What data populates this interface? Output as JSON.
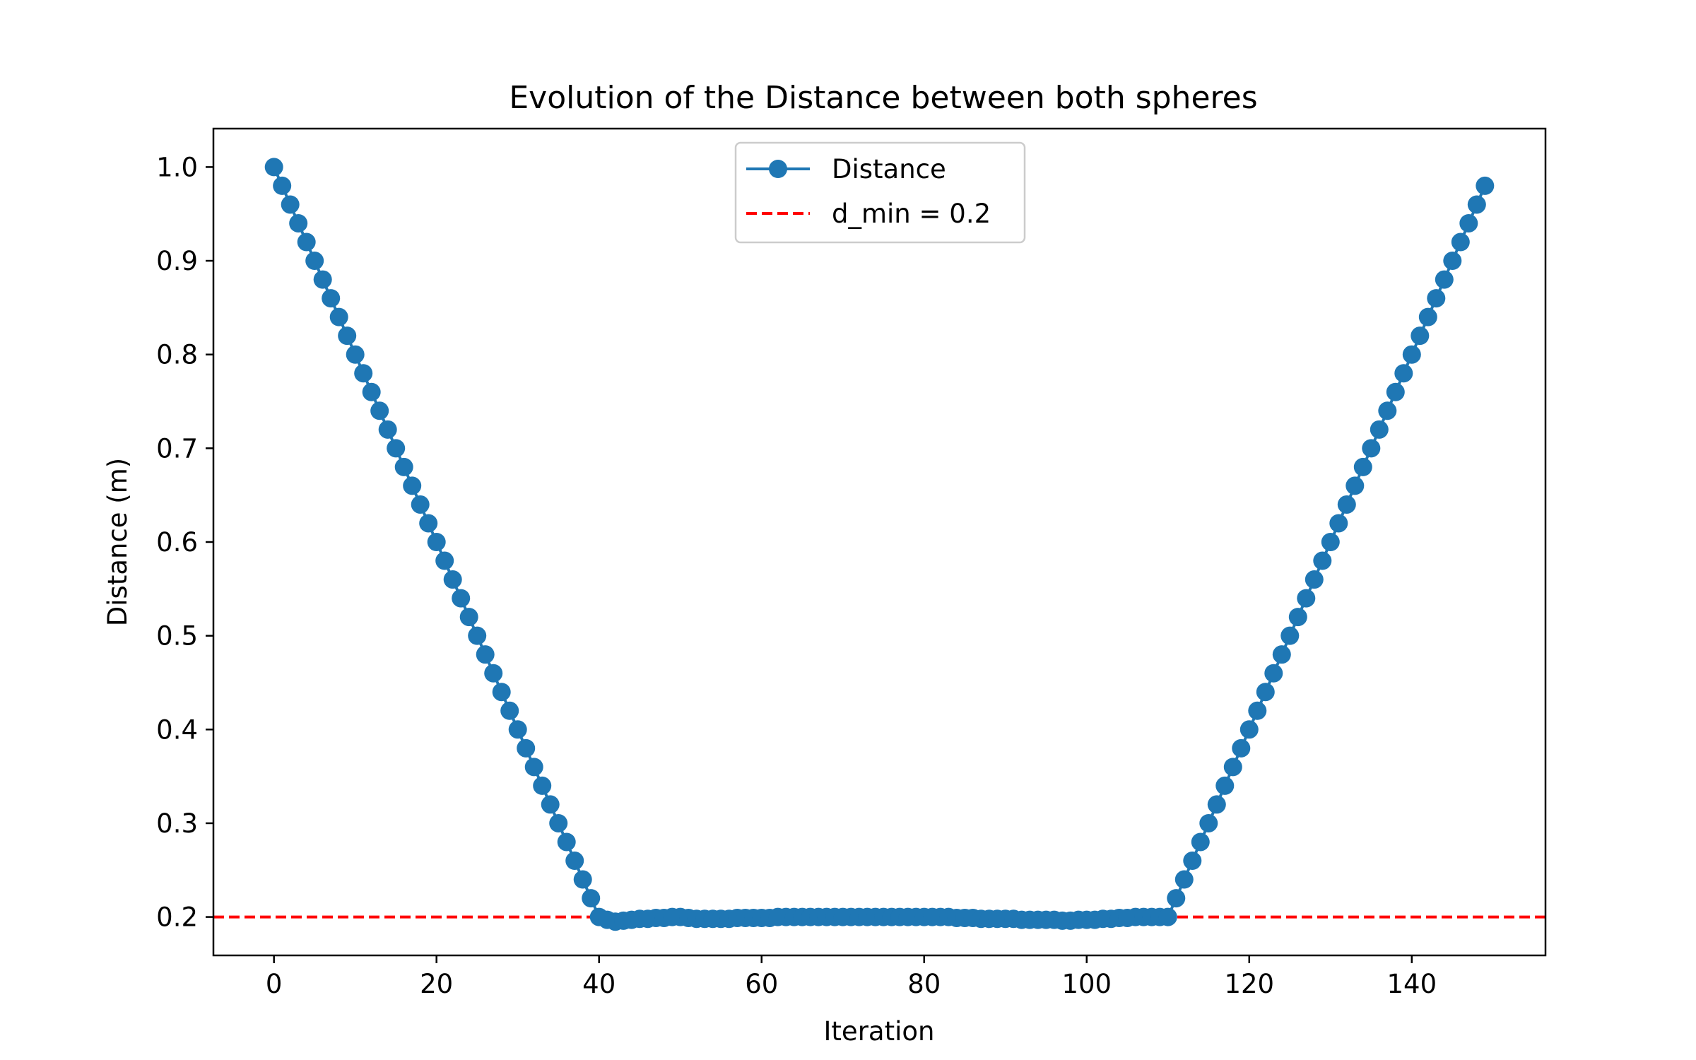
{
  "chart_data": {
    "type": "line",
    "title": "Evolution of the Distance between both spheres",
    "xlabel": "Iteration",
    "ylabel": "Distance (m)",
    "xlim": [
      -7.45,
      156.45
    ],
    "ylim": [
      0.159,
      1.041
    ],
    "xticks": [
      0,
      20,
      40,
      60,
      80,
      100,
      120,
      140
    ],
    "yticks": [
      0.2,
      0.3,
      0.4,
      0.5,
      0.6,
      0.7,
      0.8,
      0.9,
      1.0
    ],
    "xtick_labels": [
      "0",
      "20",
      "40",
      "60",
      "80",
      "100",
      "120",
      "140"
    ],
    "ytick_labels": [
      "0.2",
      "0.3",
      "0.4",
      "0.5",
      "0.6",
      "0.7",
      "0.8",
      "0.9",
      "1.0"
    ],
    "grid": false,
    "legend_position": "upper center",
    "series": [
      {
        "name": "Distance",
        "color": "#1f77b4",
        "marker": "circle",
        "x": [
          0,
          1,
          2,
          3,
          4,
          5,
          6,
          7,
          8,
          9,
          10,
          11,
          12,
          13,
          14,
          15,
          16,
          17,
          18,
          19,
          20,
          21,
          22,
          23,
          24,
          25,
          26,
          27,
          28,
          29,
          30,
          31,
          32,
          33,
          34,
          35,
          36,
          37,
          38,
          39,
          40,
          41,
          42,
          43,
          44,
          45,
          46,
          47,
          48,
          49,
          50,
          51,
          52,
          53,
          54,
          55,
          56,
          57,
          58,
          59,
          60,
          61,
          62,
          63,
          64,
          65,
          66,
          67,
          68,
          69,
          70,
          71,
          72,
          73,
          74,
          75,
          76,
          77,
          78,
          79,
          80,
          81,
          82,
          83,
          84,
          85,
          86,
          87,
          88,
          89,
          90,
          91,
          92,
          93,
          94,
          95,
          96,
          97,
          98,
          99,
          100,
          101,
          102,
          103,
          104,
          105,
          106,
          107,
          108,
          109,
          110,
          111,
          112,
          113,
          114,
          115,
          116,
          117,
          118,
          119,
          120,
          121,
          122,
          123,
          124,
          125,
          126,
          127,
          128,
          129,
          130,
          131,
          132,
          133,
          134,
          135,
          136,
          137,
          138,
          139,
          140,
          141,
          142,
          143,
          144,
          145,
          146,
          147,
          148,
          149
        ],
        "y": [
          1.0,
          0.98,
          0.96,
          0.94,
          0.92,
          0.9,
          0.88,
          0.86,
          0.84,
          0.82,
          0.8,
          0.78,
          0.76,
          0.74,
          0.72,
          0.7,
          0.68,
          0.66,
          0.64,
          0.62,
          0.6,
          0.58,
          0.56,
          0.54,
          0.52,
          0.5,
          0.48,
          0.46,
          0.44,
          0.42,
          0.4,
          0.38,
          0.36,
          0.34,
          0.32,
          0.3,
          0.28,
          0.26,
          0.24,
          0.22,
          0.2,
          0.197,
          0.195,
          0.196,
          0.197,
          0.198,
          0.198,
          0.199,
          0.199,
          0.2,
          0.2,
          0.199,
          0.198,
          0.198,
          0.198,
          0.198,
          0.198,
          0.199,
          0.199,
          0.199,
          0.199,
          0.199,
          0.2,
          0.2,
          0.2,
          0.2,
          0.2,
          0.2,
          0.2,
          0.2,
          0.2,
          0.2,
          0.2,
          0.2,
          0.2,
          0.2,
          0.2,
          0.2,
          0.2,
          0.2,
          0.2,
          0.2,
          0.2,
          0.2,
          0.199,
          0.199,
          0.199,
          0.198,
          0.198,
          0.198,
          0.198,
          0.198,
          0.197,
          0.197,
          0.197,
          0.197,
          0.197,
          0.196,
          0.196,
          0.197,
          0.197,
          0.197,
          0.198,
          0.198,
          0.199,
          0.199,
          0.2,
          0.2,
          0.2,
          0.2,
          0.2,
          0.22,
          0.24,
          0.26,
          0.28,
          0.3,
          0.32,
          0.34,
          0.36,
          0.38,
          0.4,
          0.42,
          0.44,
          0.46,
          0.48,
          0.5,
          0.52,
          0.54,
          0.56,
          0.58,
          0.6,
          0.62,
          0.64,
          0.66,
          0.68,
          0.7,
          0.72,
          0.74,
          0.76,
          0.78,
          0.8,
          0.82,
          0.84,
          0.86,
          0.88,
          0.9,
          0.92,
          0.94,
          0.96,
          0.98
        ]
      },
      {
        "name": "d_min = 0.2",
        "color": "#ff0000",
        "style": "dashed",
        "y": 0.2
      }
    ]
  }
}
